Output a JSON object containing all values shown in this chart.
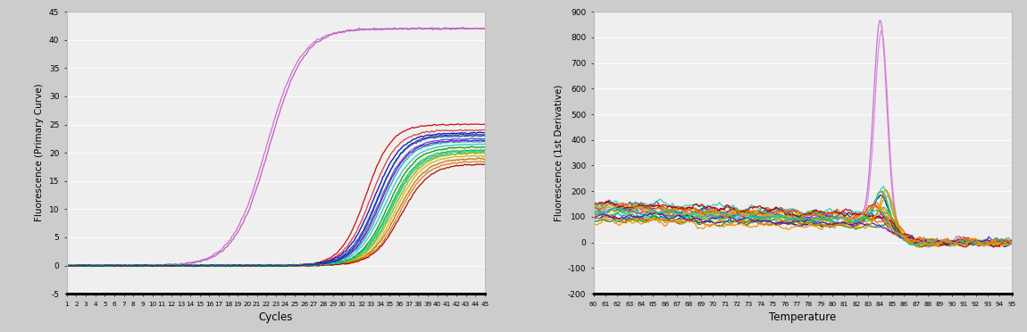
{
  "left_xlabel": "Cycles",
  "left_ylabel": "Fluorescence (Primary Curve)",
  "left_xlim": [
    1,
    45
  ],
  "left_ylim": [
    -5,
    45
  ],
  "left_yticks": [
    -5,
    0,
    5,
    10,
    15,
    20,
    25,
    30,
    35,
    40,
    45
  ],
  "left_xticks": [
    1,
    2,
    3,
    4,
    5,
    6,
    7,
    8,
    9,
    10,
    11,
    12,
    13,
    14,
    15,
    16,
    17,
    18,
    19,
    20,
    21,
    22,
    23,
    24,
    25,
    26,
    27,
    28,
    29,
    30,
    31,
    32,
    33,
    34,
    35,
    36,
    37,
    38,
    39,
    40,
    41,
    42,
    43,
    44,
    45
  ],
  "right_xlabel": "Temperature",
  "right_ylabel": "Fluorescence (1st Derivative)",
  "right_xlim": [
    60,
    95
  ],
  "right_ylim": [
    -200,
    900
  ],
  "right_yticks": [
    -200,
    -100,
    0,
    100,
    200,
    300,
    400,
    500,
    600,
    700,
    800,
    900
  ],
  "right_xticks": [
    60,
    61,
    62,
    63,
    64,
    65,
    66,
    67,
    68,
    69,
    70,
    71,
    72,
    73,
    74,
    75,
    76,
    77,
    78,
    79,
    80,
    81,
    82,
    83,
    84,
    85,
    86,
    87,
    88,
    89,
    90,
    91,
    92,
    93,
    94,
    95
  ],
  "outer_bg": "#cccccc",
  "panel_bg": "#e8e8e8",
  "plot_bg": "#efefef",
  "grid_color": "#ffffff",
  "seed": 42,
  "amp_pos_colors": [
    "#cc66cc",
    "#bb55bb"
  ],
  "amp_sample_colors": [
    "#cc0000",
    "#dd3333",
    "#0000bb",
    "#3333cc",
    "#4455cc",
    "#00aaaa",
    "#22cccc",
    "#009900",
    "#22bb22",
    "#44cc44",
    "#aaaa00",
    "#ccbb00",
    "#cc6600",
    "#dd7700",
    "#aa0000",
    "#6600cc",
    "#00ccaa",
    "#004488",
    "#888800",
    "#994400"
  ],
  "melt_pos_colors": [
    "#cc66cc",
    "#dd88dd"
  ],
  "melt_sample_colors": [
    "#cc0000",
    "#dd3333",
    "#0000bb",
    "#3333cc",
    "#4455cc",
    "#00aaaa",
    "#22cccc",
    "#009900",
    "#22bb22",
    "#44cc44",
    "#aaaa00",
    "#ccbb00",
    "#cc6600",
    "#dd7700",
    "#aa0000",
    "#6600cc",
    "#00ccaa",
    "#ff8800",
    "#888800",
    "#994400"
  ]
}
